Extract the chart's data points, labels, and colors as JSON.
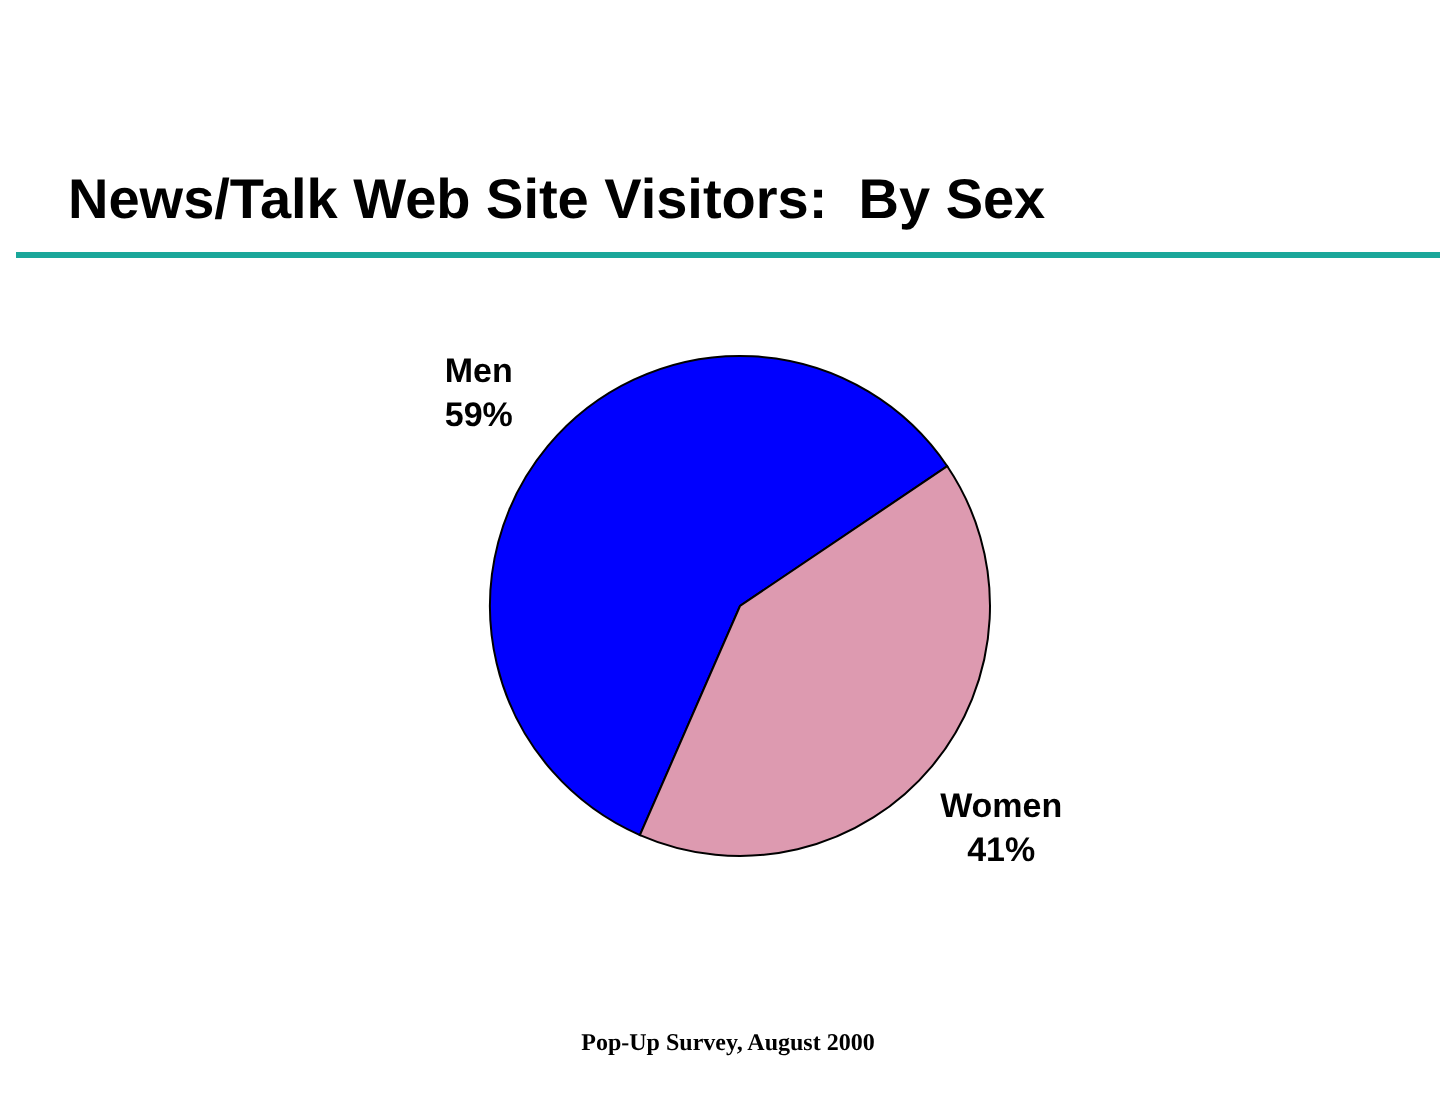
{
  "chart_data": {
    "type": "pie",
    "title": "News/Talk Web Site Visitors:  By Sex",
    "categories": [
      "Men",
      "Women"
    ],
    "values": [
      59,
      41
    ],
    "colors": [
      "#0000ff",
      "#dd9ab0"
    ],
    "value_labels": [
      "59%",
      "41%"
    ],
    "annotations": [
      "Pop-Up Survey, August 2000"
    ]
  }
}
